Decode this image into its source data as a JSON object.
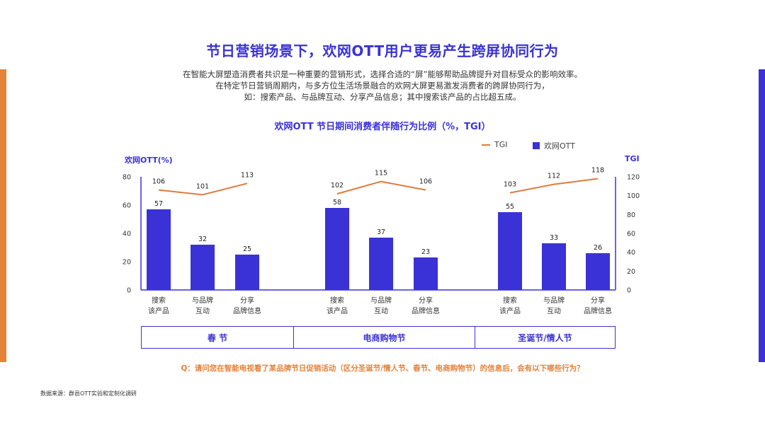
{
  "title": "节日营销场景下，欢网OTT用户更易产生跨屏协同行为",
  "description": [
    "在智能大屏塑造消费者共识是一种重要的营销形式，选择合适的“屏”能够帮助品牌提升对目标受众的影响效率。",
    "在特定节日营销周期内，与多方位生活场景融合的欢网大屏更易激发消费者的跨屏协同行为，",
    "如：搜索产品、与品牌互动、分享产品信息；其中搜索该产品的占比超五成。"
  ],
  "question": "Q：请问您在智能电视看了某品牌节日促销活动（区分圣诞节/情人节、春节、电商购物节）的信息后，会有以下哪些行为？",
  "source": "数据来源：群邑OTT实验和定制化调研",
  "colors": {
    "bar": "#3a32d6",
    "line": "#e07b3c",
    "accent_blue": "#3a32d6",
    "accent_orange": "#e5823a"
  },
  "chart_data": {
    "type": "bar",
    "title": "欢网OTT 节日期间消费者伴随行为比例（%，TGI）",
    "ylabel": "欢网OTT(%)",
    "y2label": "TGI",
    "ylim": [
      0,
      80
    ],
    "y2lim": [
      0,
      120
    ],
    "yticks": [
      "0",
      "20",
      "40",
      "60",
      "80"
    ],
    "y2ticks": [
      "0",
      "20",
      "40",
      "60",
      "80",
      "100",
      "120"
    ],
    "legend": {
      "position": "top-right",
      "line_label": "TGI",
      "bar_label": "欢网OTT"
    },
    "groups": [
      {
        "name": "春 节",
        "categories": [
          [
            "搜索",
            "该产品"
          ],
          [
            "与品牌",
            "互动"
          ],
          [
            "分享",
            "品牌信息"
          ]
        ],
        "values": [
          57,
          32,
          25
        ],
        "tgi": [
          106,
          101,
          113
        ]
      },
      {
        "name": "电商购物节",
        "categories": [
          [
            "搜索",
            "该产品"
          ],
          [
            "与品牌",
            "互动"
          ],
          [
            "分享",
            "品牌信息"
          ]
        ],
        "values": [
          58,
          37,
          23
        ],
        "tgi": [
          102,
          115,
          106
        ]
      },
      {
        "name": "圣诞节/情人节",
        "categories": [
          [
            "搜索",
            "该产品"
          ],
          [
            "与品牌",
            "互动"
          ],
          [
            "分享",
            "品牌信息"
          ]
        ],
        "values": [
          55,
          33,
          26
        ],
        "tgi": [
          103,
          112,
          118
        ]
      }
    ]
  }
}
